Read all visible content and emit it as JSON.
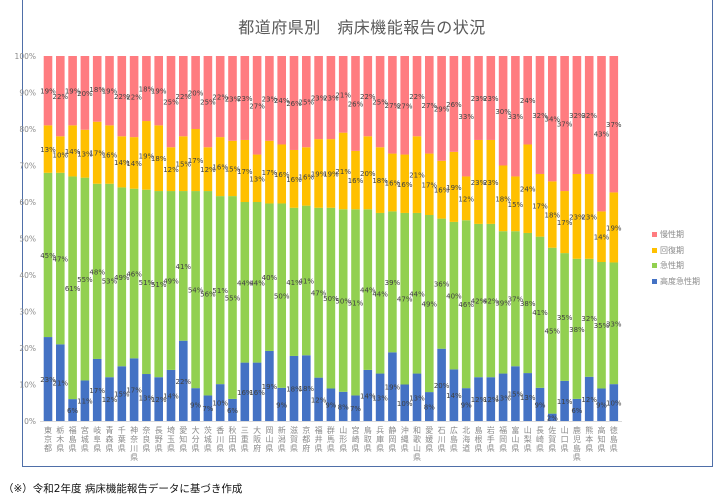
{
  "chart_data": {
    "type": "bar",
    "stacked": true,
    "percent": true,
    "title": "都道府県別　病床機能報告の状況",
    "xlabel": "",
    "ylabel": "",
    "ylim": [
      0,
      100
    ],
    "yticks": [
      "0%",
      "10%",
      "20%",
      "30%",
      "40%",
      "50%",
      "60%",
      "70%",
      "80%",
      "90%",
      "100%"
    ],
    "grid": false,
    "legend_position": "right",
    "categories": [
      "東京都",
      "栃木県",
      "福島県",
      "宮城県",
      "岐阜県",
      "青森県",
      "千葉県",
      "神奈川県",
      "奈良県",
      "長野県",
      "埼玉県",
      "愛知県",
      "大分県",
      "茨城県",
      "香川県",
      "秋田県",
      "三重県",
      "大阪府",
      "岡山県",
      "新潟県",
      "滋賀県",
      "京都府",
      "福井県",
      "群馬県",
      "山形県",
      "宮崎県",
      "鳥取県",
      "兵庫県",
      "静岡県",
      "沖縄県",
      "和歌山県",
      "愛媛県",
      "石川県",
      "広島県",
      "北海道",
      "島根県",
      "岩手県",
      "福岡県",
      "富山県",
      "山梨県",
      "長崎県",
      "佐賀県",
      "山口県",
      "鹿児島県",
      "熊本県",
      "高知県",
      "徳島県"
    ],
    "series": [
      {
        "name": "高度急性期",
        "color": "#4472c4",
        "values": [
          23,
          21,
          6,
          11,
          17,
          12,
          15,
          17,
          13,
          12,
          14,
          22,
          9,
          7,
          10,
          6,
          16,
          16,
          19,
          9,
          18,
          18,
          12,
          9,
          8,
          7,
          14,
          13,
          19,
          10,
          13,
          8,
          20,
          14,
          9,
          12,
          12,
          13,
          15,
          13,
          9,
          2,
          11,
          6,
          12,
          9,
          10
        ]
      },
      {
        "name": "急性期",
        "color": "#92d050",
        "values": [
          45,
          47,
          61,
          55,
          48,
          53,
          49,
          46,
          51,
          51,
          49,
          41,
          54,
          56,
          51,
          55,
          44,
          44,
          40,
          50,
          41,
          41,
          47,
          50,
          50,
          51,
          44,
          44,
          39,
          47,
          44,
          49,
          36,
          40,
          46,
          42,
          42,
          39,
          37,
          38,
          41,
          45,
          35,
          38,
          32,
          35,
          33
        ]
      },
      {
        "name": "回復期",
        "color": "#ffc000",
        "values": [
          13,
          10,
          14,
          13,
          17,
          16,
          14,
          14,
          19,
          18,
          12,
          15,
          17,
          12,
          16,
          15,
          17,
          13,
          17,
          16,
          16,
          16,
          19,
          19,
          21,
          16,
          20,
          18,
          16,
          16,
          21,
          17,
          16,
          19,
          12,
          23,
          23,
          18,
          15,
          24,
          17,
          18,
          17,
          23,
          23,
          14,
          19
        ]
      },
      {
        "name": "慢性期",
        "color": "#ff7c80",
        "values": [
          19,
          22,
          19,
          20,
          18,
          19,
          22,
          22,
          18,
          19,
          25,
          22,
          20,
          25,
          22,
          23,
          23,
          27,
          23,
          24,
          26,
          25,
          23,
          23,
          21,
          26,
          22,
          25,
          27,
          27,
          22,
          27,
          29,
          26,
          33,
          23,
          23,
          30,
          33,
          24,
          32,
          34,
          37,
          32,
          32,
          43,
          37
        ]
      }
    ]
  },
  "legend": {
    "items": [
      {
        "label": "慢性期",
        "color": "#ff7c80"
      },
      {
        "label": "回復期",
        "color": "#ffc000"
      },
      {
        "label": "急性期",
        "color": "#92d050"
      },
      {
        "label": "高度急性期",
        "color": "#4472c4"
      }
    ]
  },
  "footnote": "（※）令和2年度  病床機能報告データに基づき作成"
}
